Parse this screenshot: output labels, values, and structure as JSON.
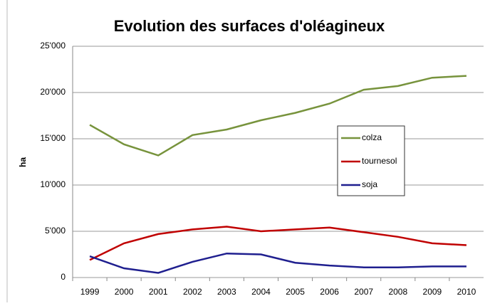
{
  "chart_data": {
    "type": "line",
    "title": "Evolution des surfaces d'oléagineux",
    "y_label": "ha",
    "categories": [
      "1999",
      "2000",
      "2001",
      "2002",
      "2003",
      "2004",
      "2005",
      "2006",
      "2007",
      "2008",
      "2009",
      "2010"
    ],
    "series": [
      {
        "name": "colza",
        "color": "#77933c",
        "values": [
          16500,
          14400,
          13200,
          15400,
          16000,
          17000,
          17800,
          18800,
          20300,
          20700,
          21600,
          21800
        ]
      },
      {
        "name": "tournesol",
        "color": "#c00000",
        "values": [
          1900,
          3700,
          4700,
          5200,
          5500,
          5000,
          5200,
          5400,
          4900,
          4400,
          3700,
          3500
        ]
      },
      {
        "name": "soja",
        "color": "#1f1f8f",
        "values": [
          2300,
          1000,
          500,
          1700,
          2600,
          2500,
          1600,
          1300,
          1100,
          1100,
          1200,
          1200
        ]
      }
    ],
    "ylim": [
      0,
      25000
    ],
    "yticks": [
      0,
      {
        "value": 5000,
        "label": "5'000"
      },
      {
        "value": 10000,
        "label": "10'000"
      },
      {
        "value": 15000,
        "label": "15'000"
      },
      {
        "value": 20000,
        "label": "20'000"
      },
      {
        "value": 25000,
        "label": "25'000"
      }
    ],
    "grid": true,
    "legend": "right"
  }
}
